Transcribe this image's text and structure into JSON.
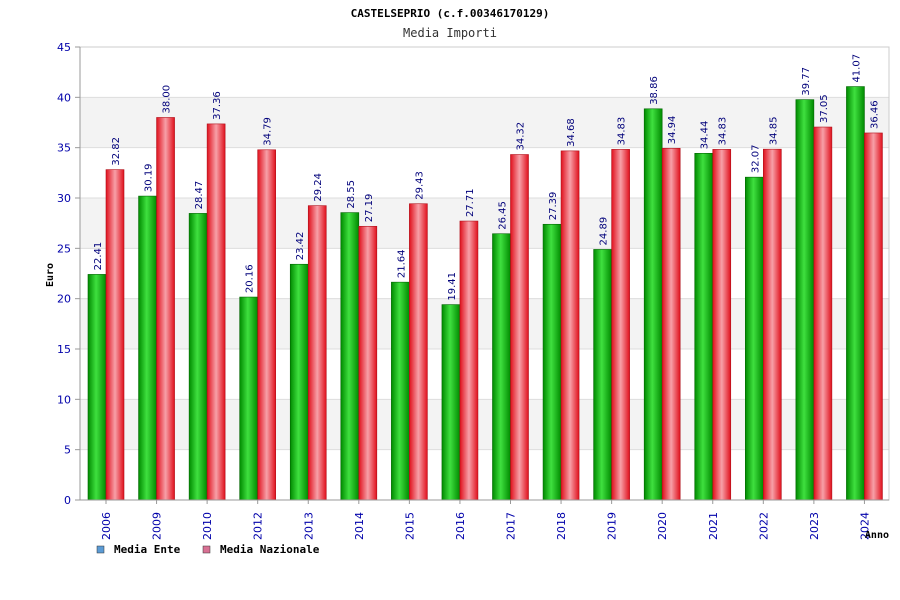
{
  "chart_data": {
    "type": "bar",
    "title": "CASTELSEPRIO (c.f.00346170129)",
    "subtitle": "Media Importi",
    "xlabel": "Anno",
    "ylabel": "Euro",
    "ylim": [
      0,
      45
    ],
    "yticks": [
      0,
      5,
      10,
      15,
      20,
      25,
      30,
      35,
      40,
      45
    ],
    "grid": true,
    "legend_position": "bottom-left",
    "categories": [
      "2006",
      "2009",
      "2010",
      "2012",
      "2013",
      "2014",
      "2015",
      "2016",
      "2017",
      "2018",
      "2019",
      "2020",
      "2021",
      "2022",
      "2023",
      "2024"
    ],
    "series": [
      {
        "name": "Media Ente",
        "color": "#00aa00",
        "legend_color": "#5b9bd5",
        "values": [
          22.41,
          30.19,
          28.47,
          20.16,
          23.42,
          28.55,
          21.64,
          19.41,
          26.45,
          27.39,
          24.89,
          38.86,
          34.44,
          32.07,
          39.77,
          41.07
        ],
        "labels": [
          "22.41",
          "30.19",
          "28.47",
          "20.16",
          "23.42",
          "28.55",
          "21.64",
          "19.41",
          "26.45",
          "27.39",
          "24.89",
          "38.86",
          "34.44",
          "32.07",
          "39.77",
          "41.07"
        ]
      },
      {
        "name": "Media Nazionale",
        "color": "#e8202a",
        "legend_color": "#d87093",
        "values": [
          32.82,
          38.0,
          37.36,
          34.79,
          29.24,
          27.19,
          29.43,
          27.71,
          34.32,
          34.68,
          34.83,
          34.94,
          34.83,
          34.85,
          37.05,
          36.46
        ],
        "labels": [
          "32.82",
          "38.00",
          "37.36",
          "34.79",
          "29.24",
          "27.19",
          "29.43",
          "27.71",
          "34.32",
          "34.68",
          "34.83",
          "34.94",
          "34.83",
          "34.85",
          "37.05",
          "36.46"
        ]
      }
    ]
  }
}
